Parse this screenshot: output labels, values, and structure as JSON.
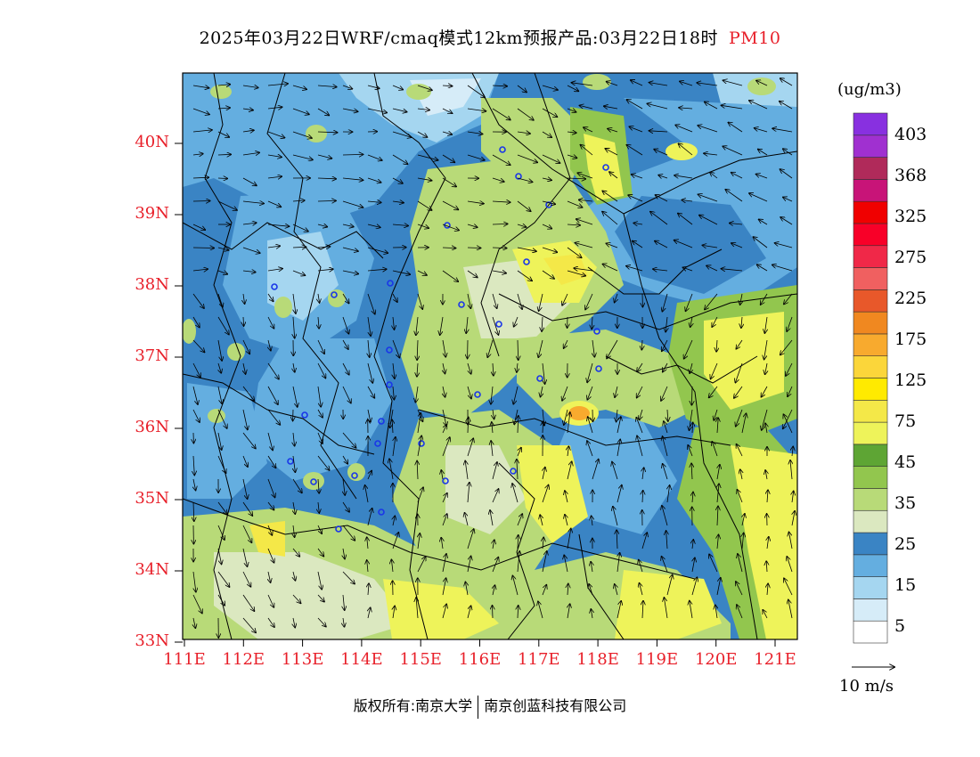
{
  "title": {
    "main": "2025年03月22日WRF/cmaq模式12km预报产品:03月22日18时",
    "pollutant": "PM10"
  },
  "map": {
    "lat_labels": [
      "40N",
      "39N",
      "38N",
      "37N",
      "36N",
      "35N",
      "34N",
      "33N"
    ],
    "lon_labels": [
      "111E",
      "112E",
      "113E",
      "114E",
      "115E",
      "116E",
      "117E",
      "118E",
      "119E",
      "120E",
      "121E"
    ]
  },
  "colorbar": {
    "unit": "(ug/m3)",
    "labels": [
      "403",
      "368",
      "325",
      "275",
      "225",
      "175",
      "125",
      "75",
      "45",
      "35",
      "25",
      "15",
      "5"
    ],
    "colors": [
      "#ffffff",
      "#d6ecf8",
      "#a5d6f0",
      "#64aee0",
      "#3a84c4",
      "#dbe8c0",
      "#b8da78",
      "#92c64e",
      "#5ea534",
      "#eef35a",
      "#f4e848",
      "#ffea00",
      "#fbd63a",
      "#f8aa2e",
      "#f08820",
      "#e8582a",
      "#f06060",
      "#f02848",
      "#f80028",
      "#f00000",
      "#c81478",
      "#b02a5a",
      "#a030d0",
      "#8830e0"
    ]
  },
  "wind_vector": {
    "label": "10 m/s"
  },
  "footer": {
    "left": "版权所有:南京大学",
    "right": "南京创蓝科技有限公司"
  }
}
